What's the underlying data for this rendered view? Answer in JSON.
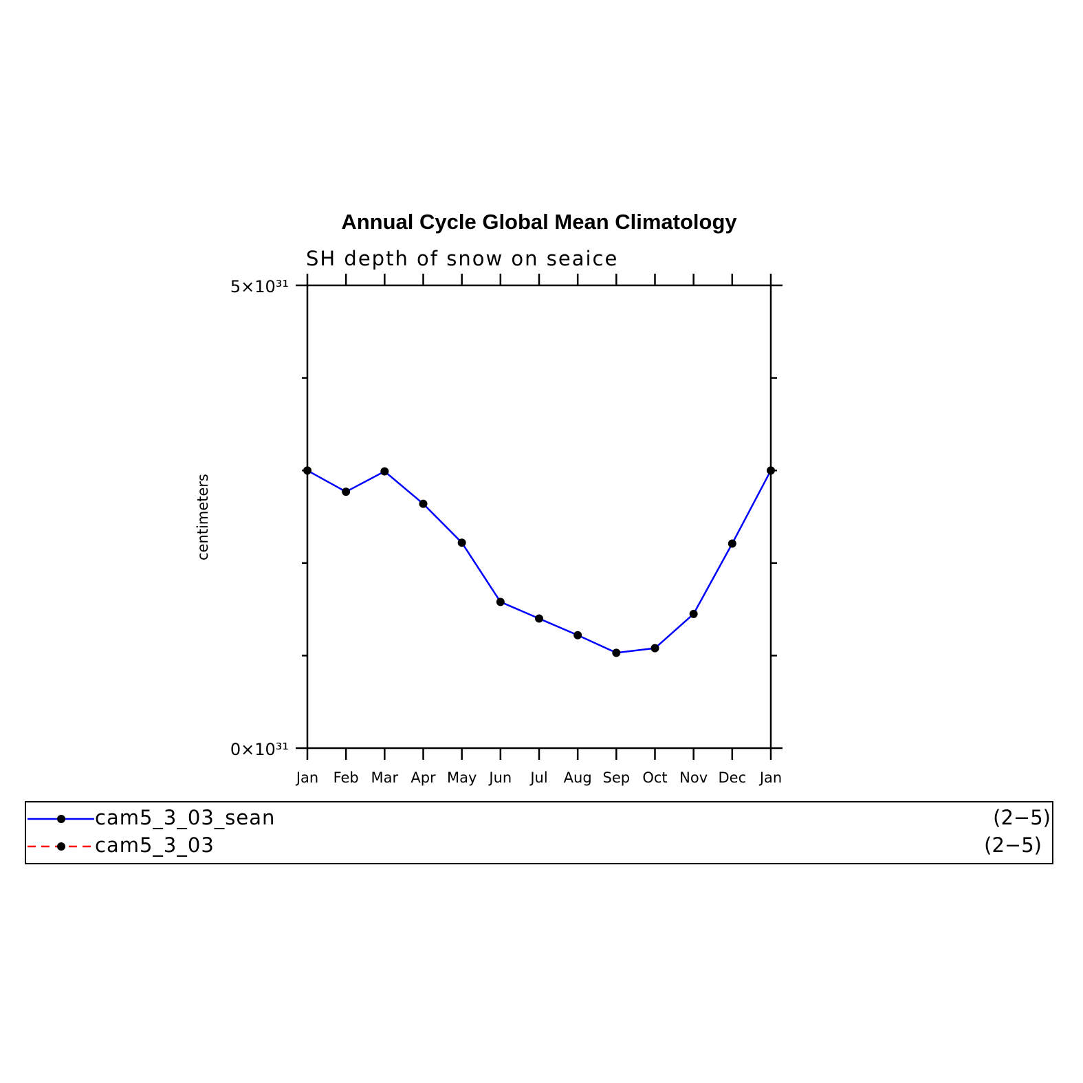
{
  "chart_data": {
    "type": "line",
    "title": "Annual Cycle Global Mean Climatology",
    "subtitle": "SH depth of snow on seaice",
    "y_label": "centimeters",
    "categories": [
      "Jan",
      "Feb",
      "Mar",
      "Apr",
      "May",
      "Jun",
      "Jul",
      "Aug",
      "Sep",
      "Oct",
      "Nov",
      "Dec",
      "Jan"
    ],
    "series": [
      {
        "name": "cam5_3_03_sean",
        "color": "#0000ff",
        "dash": "solid",
        "note": "(2−5)",
        "values": [
          3e+31,
          2.77e+31,
          2.99e+31,
          2.64e+31,
          2.22e+31,
          1.58e+31,
          1.4e+31,
          1.22e+31,
          1.03e+31,
          1.08e+31,
          1.45e+31,
          2.21e+31,
          3e+31
        ]
      },
      {
        "name": "cam5_3_03",
        "color": "#ff0000",
        "dash": "dashed",
        "note": "(2−5)",
        "values": [
          null,
          null,
          null,
          null,
          null,
          null,
          null,
          null,
          null,
          null,
          null,
          null,
          null
        ]
      }
    ],
    "ylim": [
      0,
      5e+31
    ],
    "yticks": [
      {
        "value": 0,
        "label": "0×10³¹"
      },
      {
        "value": 5e+31,
        "label": "5×10³¹"
      }
    ],
    "minor_yticks": [
      1e+31,
      2e+31,
      3e+31,
      4e+31
    ],
    "marker_color": "#000000"
  }
}
